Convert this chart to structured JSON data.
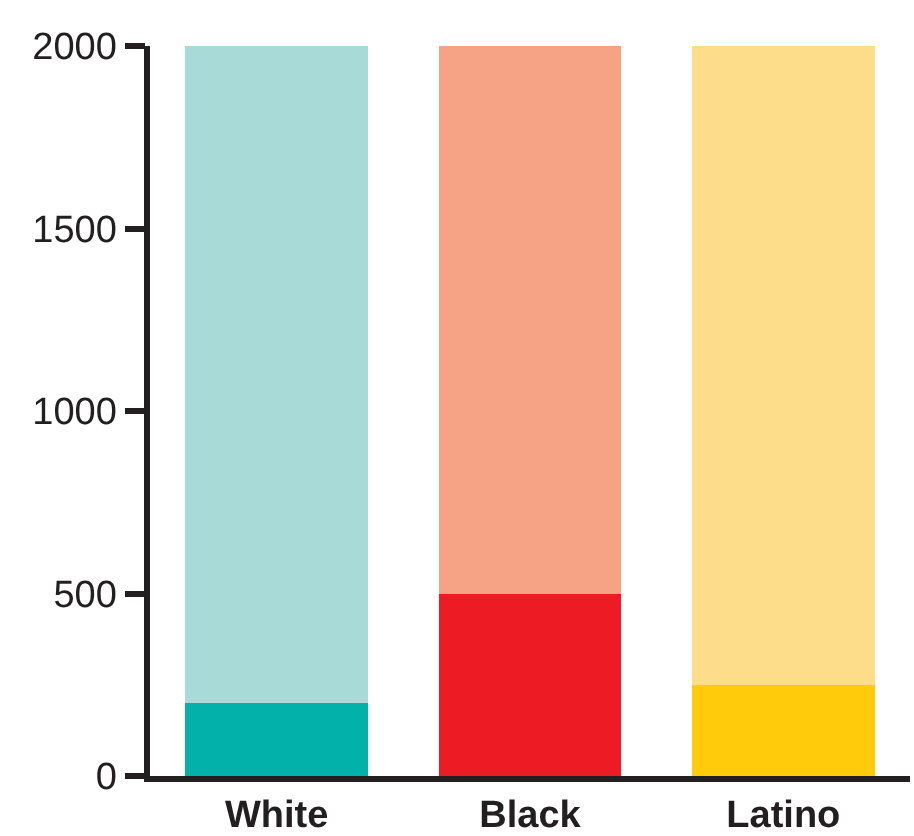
{
  "chart_data": {
    "type": "bar",
    "stacked": true,
    "categories": [
      "White",
      "Black",
      "Latino"
    ],
    "series": [
      {
        "colors": [
          "#02b1a9",
          "#ed1c24",
          "#ffcb0b"
        ],
        "values": [
          200,
          500,
          250
        ]
      },
      {
        "colors": [
          "#a8dad8",
          "#f6a385",
          "#fedd8a"
        ],
        "values": [
          1800,
          1500,
          1750
        ]
      }
    ],
    "ylim": [
      0,
      2000
    ],
    "yticks": [
      0,
      500,
      1000,
      1500,
      2000
    ],
    "grid": false
  }
}
